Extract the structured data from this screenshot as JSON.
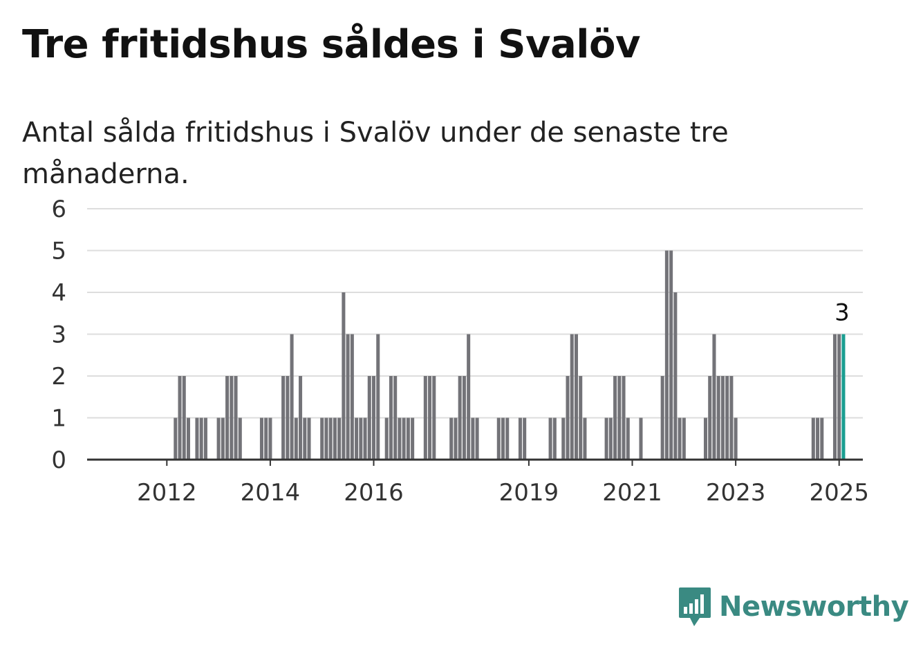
{
  "title": "Tre fritidshus såldes i Svalöv",
  "subtitle": "Antal sålda fritidshus i Svalöv under de senaste tre månaderna.",
  "brand": {
    "name": "Newsworthy",
    "color": "#3a8a82",
    "icon": "bar-chart-speech-bubble-icon"
  },
  "chart_data": {
    "type": "bar",
    "ylim": [
      0,
      6
    ],
    "yticks": [
      0,
      1,
      2,
      3,
      4,
      5,
      6
    ],
    "xlim": [
      "2011-01",
      "2025-12"
    ],
    "xticks": [
      {
        "label": "2012",
        "date": "2012-07"
      },
      {
        "label": "2014",
        "date": "2014-07"
      },
      {
        "label": "2016",
        "date": "2016-07"
      },
      {
        "label": "2019",
        "date": "2019-07"
      },
      {
        "label": "2021",
        "date": "2021-07"
      },
      {
        "label": "2023",
        "date": "2023-07"
      },
      {
        "label": "2025",
        "date": "2025-07"
      }
    ],
    "grid": true,
    "bar_color": "#737378",
    "highlight_color": "#1a9e91",
    "highlight_date": "2025-08",
    "highlight_label": "3",
    "bars": [
      {
        "date": "2012-09",
        "value": 1
      },
      {
        "date": "2012-10",
        "value": 2
      },
      {
        "date": "2012-11",
        "value": 2
      },
      {
        "date": "2012-12",
        "value": 1
      },
      {
        "date": "2013-02",
        "value": 1
      },
      {
        "date": "2013-03",
        "value": 1
      },
      {
        "date": "2013-04",
        "value": 1
      },
      {
        "date": "2013-07",
        "value": 1
      },
      {
        "date": "2013-08",
        "value": 1
      },
      {
        "date": "2013-09",
        "value": 2
      },
      {
        "date": "2013-10",
        "value": 2
      },
      {
        "date": "2013-11",
        "value": 2
      },
      {
        "date": "2013-12",
        "value": 1
      },
      {
        "date": "2014-05",
        "value": 1
      },
      {
        "date": "2014-06",
        "value": 1
      },
      {
        "date": "2014-07",
        "value": 1
      },
      {
        "date": "2014-10",
        "value": 2
      },
      {
        "date": "2014-11",
        "value": 2
      },
      {
        "date": "2014-12",
        "value": 3
      },
      {
        "date": "2015-01",
        "value": 1
      },
      {
        "date": "2015-02",
        "value": 2
      },
      {
        "date": "2015-03",
        "value": 1
      },
      {
        "date": "2015-04",
        "value": 1
      },
      {
        "date": "2015-07",
        "value": 1
      },
      {
        "date": "2015-08",
        "value": 1
      },
      {
        "date": "2015-09",
        "value": 1
      },
      {
        "date": "2015-10",
        "value": 1
      },
      {
        "date": "2015-11",
        "value": 1
      },
      {
        "date": "2015-12",
        "value": 4
      },
      {
        "date": "2016-01",
        "value": 3
      },
      {
        "date": "2016-02",
        "value": 3
      },
      {
        "date": "2016-03",
        "value": 1
      },
      {
        "date": "2016-04",
        "value": 1
      },
      {
        "date": "2016-05",
        "value": 1
      },
      {
        "date": "2016-06",
        "value": 2
      },
      {
        "date": "2016-07",
        "value": 2
      },
      {
        "date": "2016-08",
        "value": 3
      },
      {
        "date": "2016-10",
        "value": 1
      },
      {
        "date": "2016-11",
        "value": 2
      },
      {
        "date": "2016-12",
        "value": 2
      },
      {
        "date": "2017-01",
        "value": 1
      },
      {
        "date": "2017-02",
        "value": 1
      },
      {
        "date": "2017-03",
        "value": 1
      },
      {
        "date": "2017-04",
        "value": 1
      },
      {
        "date": "2017-07",
        "value": 2
      },
      {
        "date": "2017-08",
        "value": 2
      },
      {
        "date": "2017-09",
        "value": 2
      },
      {
        "date": "2018-01",
        "value": 1
      },
      {
        "date": "2018-02",
        "value": 1
      },
      {
        "date": "2018-03",
        "value": 2
      },
      {
        "date": "2018-04",
        "value": 2
      },
      {
        "date": "2018-05",
        "value": 3
      },
      {
        "date": "2018-06",
        "value": 1
      },
      {
        "date": "2018-07",
        "value": 1
      },
      {
        "date": "2018-12",
        "value": 1
      },
      {
        "date": "2019-01",
        "value": 1
      },
      {
        "date": "2019-02",
        "value": 1
      },
      {
        "date": "2019-05",
        "value": 1
      },
      {
        "date": "2019-06",
        "value": 1
      },
      {
        "date": "2019-12",
        "value": 1
      },
      {
        "date": "2020-01",
        "value": 1
      },
      {
        "date": "2020-03",
        "value": 1
      },
      {
        "date": "2020-04",
        "value": 2
      },
      {
        "date": "2020-05",
        "value": 3
      },
      {
        "date": "2020-06",
        "value": 3
      },
      {
        "date": "2020-07",
        "value": 2
      },
      {
        "date": "2020-08",
        "value": 1
      },
      {
        "date": "2021-01",
        "value": 1
      },
      {
        "date": "2021-02",
        "value": 1
      },
      {
        "date": "2021-03",
        "value": 2
      },
      {
        "date": "2021-04",
        "value": 2
      },
      {
        "date": "2021-05",
        "value": 2
      },
      {
        "date": "2021-06",
        "value": 1
      },
      {
        "date": "2021-09",
        "value": 1
      },
      {
        "date": "2022-02",
        "value": 2
      },
      {
        "date": "2022-03",
        "value": 5
      },
      {
        "date": "2022-04",
        "value": 5
      },
      {
        "date": "2022-05",
        "value": 4
      },
      {
        "date": "2022-06",
        "value": 1
      },
      {
        "date": "2022-07",
        "value": 1
      },
      {
        "date": "2022-12",
        "value": 1
      },
      {
        "date": "2023-01",
        "value": 2
      },
      {
        "date": "2023-02",
        "value": 3
      },
      {
        "date": "2023-03",
        "value": 2
      },
      {
        "date": "2023-04",
        "value": 2
      },
      {
        "date": "2023-05",
        "value": 2
      },
      {
        "date": "2023-06",
        "value": 2
      },
      {
        "date": "2023-07",
        "value": 1
      },
      {
        "date": "2025-01",
        "value": 1
      },
      {
        "date": "2025-02",
        "value": 1
      },
      {
        "date": "2025-03",
        "value": 1
      },
      {
        "date": "2025-06",
        "value": 3
      },
      {
        "date": "2025-07",
        "value": 3
      },
      {
        "date": "2025-08",
        "value": 3
      }
    ]
  }
}
